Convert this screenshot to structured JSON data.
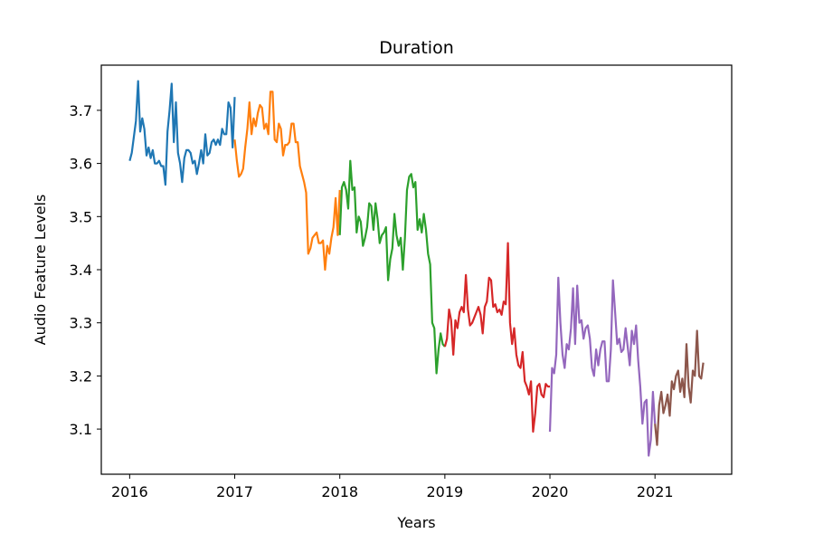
{
  "chart_data": {
    "type": "line",
    "title": "Duration",
    "xlabel": "Years",
    "ylabel": "Audio Feature Levels",
    "xlim": [
      2015.73,
      2021.73
    ],
    "ylim": [
      3.015,
      3.785
    ],
    "xticks": [
      2016,
      2017,
      2018,
      2019,
      2020,
      2021
    ],
    "xtick_labels": [
      "2016",
      "2017",
      "2018",
      "2019",
      "2020",
      "2021"
    ],
    "yticks": [
      3.1,
      3.2,
      3.3,
      3.4,
      3.5,
      3.6,
      3.7
    ],
    "ytick_labels": [
      "3.1",
      "3.2",
      "3.3",
      "3.4",
      "3.5",
      "3.6",
      "3.7"
    ],
    "grid": false,
    "legend": "none",
    "series": [
      {
        "color": "#1f77b4",
        "x": [
          2016.0,
          2016.02,
          2016.04,
          2016.06,
          2016.08,
          2016.1,
          2016.12,
          2016.14,
          2016.16,
          2016.18,
          2016.2,
          2016.22,
          2016.24,
          2016.26,
          2016.28,
          2016.3,
          2016.32,
          2016.34,
          2016.36,
          2016.38,
          2016.4,
          2016.42,
          2016.44,
          2016.46,
          2016.48,
          2016.5,
          2016.52,
          2016.54,
          2016.56,
          2016.58,
          2016.6,
          2016.62,
          2016.64,
          2016.66,
          2016.68,
          2016.7,
          2016.72,
          2016.74,
          2016.76,
          2016.78,
          2016.8,
          2016.82,
          2016.84,
          2016.86,
          2016.88,
          2016.9,
          2016.92,
          2016.94,
          2016.96,
          2016.98,
          2017.0
        ],
        "y": [
          3.605,
          3.62,
          3.65,
          3.68,
          3.755,
          3.66,
          3.685,
          3.665,
          3.615,
          3.63,
          3.61,
          3.625,
          3.6,
          3.6,
          3.605,
          3.595,
          3.595,
          3.56,
          3.66,
          3.7,
          3.75,
          3.64,
          3.715,
          3.62,
          3.6,
          3.565,
          3.61,
          3.625,
          3.625,
          3.62,
          3.6,
          3.605,
          3.58,
          3.6,
          3.625,
          3.6,
          3.655,
          3.615,
          3.62,
          3.64,
          3.645,
          3.635,
          3.645,
          3.635,
          3.665,
          3.655,
          3.655,
          3.715,
          3.705,
          3.63,
          3.725
        ]
      },
      {
        "color": "#ff7f0e",
        "x": [
          2017.0,
          2017.02,
          2017.04,
          2017.06,
          2017.08,
          2017.1,
          2017.12,
          2017.14,
          2017.16,
          2017.18,
          2017.2,
          2017.22,
          2017.24,
          2017.26,
          2017.28,
          2017.3,
          2017.32,
          2017.34,
          2017.36,
          2017.38,
          2017.4,
          2017.42,
          2017.44,
          2017.46,
          2017.48,
          2017.5,
          2017.52,
          2017.54,
          2017.56,
          2017.58,
          2017.6,
          2017.62,
          2017.64,
          2017.66,
          2017.68,
          2017.7,
          2017.72,
          2017.74,
          2017.76,
          2017.78,
          2017.8,
          2017.82,
          2017.84,
          2017.86,
          2017.88,
          2017.9,
          2017.92,
          2017.94,
          2017.96,
          2017.98,
          2018.0
        ],
        "y": [
          3.645,
          3.605,
          3.575,
          3.58,
          3.59,
          3.63,
          3.665,
          3.715,
          3.655,
          3.685,
          3.67,
          3.695,
          3.71,
          3.705,
          3.665,
          3.675,
          3.655,
          3.735,
          3.735,
          3.645,
          3.64,
          3.675,
          3.665,
          3.615,
          3.635,
          3.635,
          3.64,
          3.675,
          3.675,
          3.64,
          3.64,
          3.595,
          3.58,
          3.565,
          3.545,
          3.43,
          3.44,
          3.46,
          3.465,
          3.47,
          3.45,
          3.45,
          3.455,
          3.4,
          3.445,
          3.43,
          3.46,
          3.48,
          3.535,
          3.465,
          3.55
        ]
      },
      {
        "color": "#2ca02c",
        "x": [
          2018.0,
          2018.02,
          2018.04,
          2018.06,
          2018.08,
          2018.1,
          2018.12,
          2018.14,
          2018.16,
          2018.18,
          2018.2,
          2018.22,
          2018.24,
          2018.26,
          2018.28,
          2018.3,
          2018.32,
          2018.34,
          2018.36,
          2018.38,
          2018.4,
          2018.42,
          2018.44,
          2018.46,
          2018.48,
          2018.5,
          2018.52,
          2018.54,
          2018.56,
          2018.58,
          2018.6,
          2018.62,
          2018.64,
          2018.66,
          2018.68,
          2018.7,
          2018.72,
          2018.74,
          2018.76,
          2018.78,
          2018.8,
          2018.82,
          2018.84,
          2018.86,
          2018.88,
          2018.9,
          2018.92,
          2018.94,
          2018.96,
          2018.98,
          2019.0
        ],
        "y": [
          3.465,
          3.555,
          3.565,
          3.55,
          3.515,
          3.605,
          3.55,
          3.555,
          3.47,
          3.5,
          3.49,
          3.445,
          3.46,
          3.48,
          3.525,
          3.52,
          3.475,
          3.525,
          3.495,
          3.45,
          3.465,
          3.47,
          3.48,
          3.38,
          3.42,
          3.44,
          3.505,
          3.465,
          3.445,
          3.46,
          3.4,
          3.46,
          3.55,
          3.575,
          3.58,
          3.555,
          3.565,
          3.475,
          3.495,
          3.47,
          3.505,
          3.475,
          3.43,
          3.41,
          3.3,
          3.29,
          3.205,
          3.25,
          3.28,
          3.26,
          3.255
        ]
      },
      {
        "color": "#d62728",
        "x": [
          2019.0,
          2019.02,
          2019.04,
          2019.06,
          2019.08,
          2019.1,
          2019.12,
          2019.14,
          2019.16,
          2019.18,
          2019.2,
          2019.22,
          2019.24,
          2019.26,
          2019.28,
          2019.3,
          2019.32,
          2019.34,
          2019.36,
          2019.38,
          2019.4,
          2019.42,
          2019.44,
          2019.46,
          2019.48,
          2019.5,
          2019.52,
          2019.54,
          2019.56,
          2019.58,
          2019.6,
          2019.62,
          2019.64,
          2019.66,
          2019.68,
          2019.7,
          2019.72,
          2019.74,
          2019.76,
          2019.78,
          2019.8,
          2019.82,
          2019.84,
          2019.86,
          2019.88,
          2019.9,
          2019.92,
          2019.94,
          2019.96,
          2019.98,
          2020.0
        ],
        "y": [
          3.255,
          3.27,
          3.325,
          3.305,
          3.24,
          3.305,
          3.29,
          3.32,
          3.33,
          3.32,
          3.39,
          3.325,
          3.295,
          3.3,
          3.31,
          3.32,
          3.33,
          3.315,
          3.28,
          3.33,
          3.34,
          3.385,
          3.38,
          3.33,
          3.335,
          3.32,
          3.325,
          3.315,
          3.34,
          3.335,
          3.45,
          3.3,
          3.26,
          3.29,
          3.24,
          3.22,
          3.215,
          3.245,
          3.19,
          3.18,
          3.165,
          3.19,
          3.095,
          3.13,
          3.18,
          3.185,
          3.165,
          3.16,
          3.185,
          3.18,
          3.18
        ]
      },
      {
        "color": "#9467bd",
        "x": [
          2020.0,
          2020.02,
          2020.04,
          2020.06,
          2020.08,
          2020.1,
          2020.12,
          2020.14,
          2020.16,
          2020.18,
          2020.2,
          2020.22,
          2020.24,
          2020.26,
          2020.28,
          2020.3,
          2020.32,
          2020.34,
          2020.36,
          2020.38,
          2020.4,
          2020.42,
          2020.44,
          2020.46,
          2020.48,
          2020.5,
          2020.52,
          2020.54,
          2020.56,
          2020.58,
          2020.6,
          2020.62,
          2020.64,
          2020.66,
          2020.68,
          2020.7,
          2020.72,
          2020.74,
          2020.76,
          2020.78,
          2020.8,
          2020.82,
          2020.84,
          2020.86,
          2020.88,
          2020.9,
          2020.92,
          2020.94,
          2020.96,
          2020.98,
          2021.0
        ],
        "y": [
          3.095,
          3.215,
          3.205,
          3.24,
          3.385,
          3.3,
          3.24,
          3.215,
          3.26,
          3.25,
          3.29,
          3.365,
          3.26,
          3.37,
          3.3,
          3.305,
          3.27,
          3.29,
          3.295,
          3.27,
          3.215,
          3.2,
          3.25,
          3.22,
          3.25,
          3.265,
          3.265,
          3.19,
          3.19,
          3.25,
          3.38,
          3.32,
          3.26,
          3.27,
          3.245,
          3.25,
          3.29,
          3.255,
          3.22,
          3.285,
          3.26,
          3.295,
          3.23,
          3.18,
          3.11,
          3.15,
          3.155,
          3.05,
          3.08,
          3.17,
          3.11
        ]
      },
      {
        "color": "#8c564b",
        "x": [
          2021.0,
          2021.02,
          2021.04,
          2021.06,
          2021.08,
          2021.1,
          2021.12,
          2021.14,
          2021.16,
          2021.18,
          2021.2,
          2021.22,
          2021.24,
          2021.26,
          2021.28,
          2021.3,
          2021.32,
          2021.34,
          2021.36,
          2021.38,
          2021.4,
          2021.42,
          2021.44,
          2021.46
        ],
        "y": [
          3.11,
          3.07,
          3.145,
          3.17,
          3.13,
          3.145,
          3.165,
          3.125,
          3.19,
          3.175,
          3.2,
          3.21,
          3.17,
          3.195,
          3.16,
          3.26,
          3.18,
          3.15,
          3.21,
          3.2,
          3.285,
          3.2,
          3.195,
          3.225
        ]
      }
    ]
  }
}
